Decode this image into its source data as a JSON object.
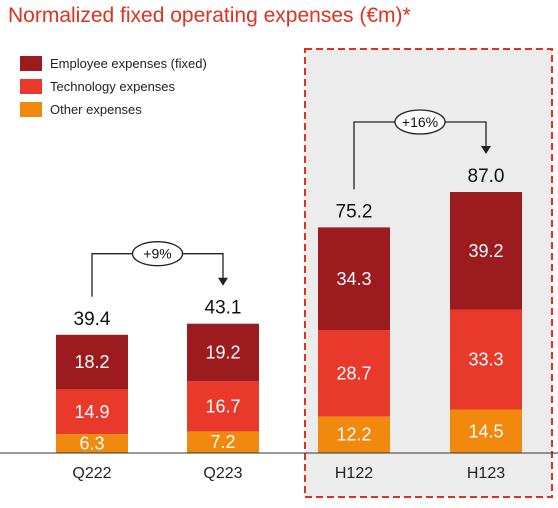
{
  "title": "Normalized fixed operating expenses (€m)*",
  "colors": {
    "employee": "#9b1b1f",
    "technology": "#e8392b",
    "other": "#f0890e",
    "highlight_bg": "#ececec",
    "highlight_border": "#e0301e"
  },
  "chart_data": {
    "type": "bar",
    "stacked": true,
    "categories": [
      "Q222",
      "Q223",
      "H122",
      "H123"
    ],
    "series": [
      {
        "name": "Other expenses",
        "values": [
          6.3,
          7.2,
          12.2,
          14.5
        ]
      },
      {
        "name": "Technology expenses",
        "values": [
          14.9,
          16.7,
          28.7,
          33.3
        ]
      },
      {
        "name": "Employee expenses (fixed)",
        "values": [
          18.2,
          19.2,
          34.3,
          39.2
        ]
      }
    ],
    "totals": [
      39.4,
      43.1,
      75.2,
      87.0
    ],
    "annotations": [
      {
        "from": "Q222",
        "to": "Q223",
        "label": "+9%"
      },
      {
        "from": "H122",
        "to": "H123",
        "label": "+16%"
      }
    ],
    "highlighted_categories": [
      "H122",
      "H123"
    ],
    "legend_position": "top-left",
    "legend_order": [
      "Employee expenses (fixed)",
      "Technology expenses",
      "Other expenses"
    ],
    "title": "Normalized fixed operating expenses (€m)*",
    "xlabel": "",
    "ylabel": ""
  },
  "display": {
    "values": [
      [
        "6.3",
        "7.2",
        "12.2",
        "14.5"
      ],
      [
        "14.9",
        "16.7",
        "28.7",
        "33.3"
      ],
      [
        "18.2",
        "19.2",
        "34.3",
        "39.2"
      ]
    ],
    "totals": [
      "39.4",
      "43.1",
      "75.2",
      "87.0"
    ]
  }
}
